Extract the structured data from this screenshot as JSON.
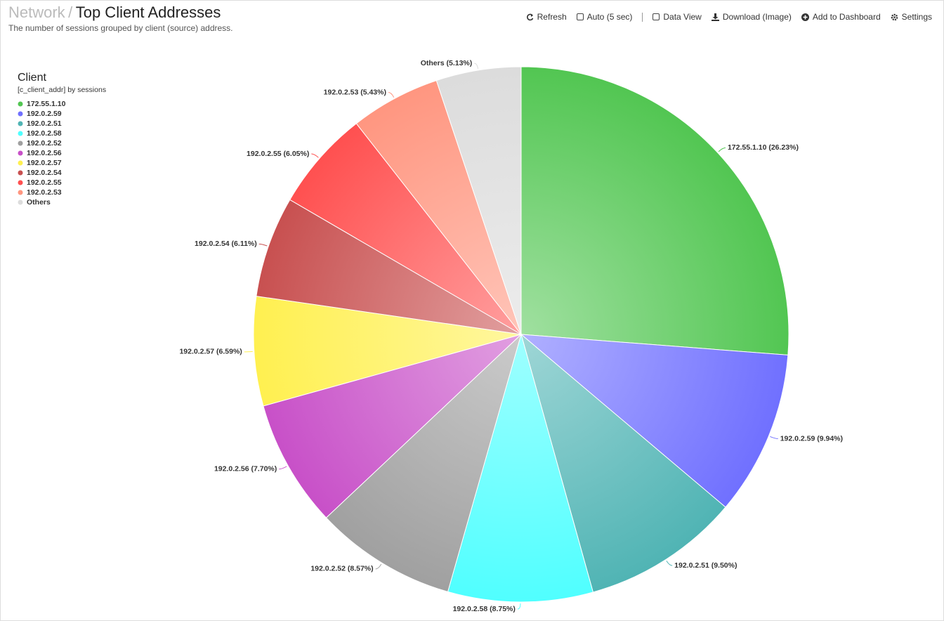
{
  "header": {
    "breadcrumb": "Network",
    "separator": "/",
    "title": "Top Client Addresses",
    "subtitle": "The number of sessions grouped by client (source) address."
  },
  "toolbar": [
    "Refresh",
    "Auto (5 sec)",
    "Data View",
    "Download (Image)",
    "Add to Dashboard",
    "Settings"
  ],
  "chart_data": {
    "type": "pie",
    "legend_title": "Client",
    "legend_subtitle": "[c_client_addr] by sessions",
    "legend": "top-left",
    "categories": [
      "172.55.1.10",
      "192.0.2.59",
      "192.0.2.51",
      "192.0.2.58",
      "192.0.2.52",
      "192.0.2.56",
      "192.0.2.57",
      "192.0.2.54",
      "192.0.2.55",
      "192.0.2.53",
      "Others"
    ],
    "values": [
      26.23,
      9.94,
      9.5,
      8.75,
      8.57,
      7.7,
      6.59,
      6.11,
      6.05,
      5.43,
      5.13
    ],
    "value_labels": [
      "172.55.1.10 (26.23%)",
      "192.0.2.59 (9.94%)",
      "192.0.2.51 (9.50%)",
      "192.0.2.58 (8.75%)",
      "192.0.2.52 (8.57%)",
      "192.0.2.56 (7.70%)",
      "192.0.2.57 (6.59%)",
      "192.0.2.54 (6.11%)",
      "192.0.2.55 (6.05%)",
      "192.0.2.53 (5.43%)",
      "Others (5.13%)"
    ],
    "colors": [
      "#52c652",
      "#7070ff",
      "#50b4b4",
      "#50ffff",
      "#a0a0a0",
      "#c850c8",
      "#fff050",
      "#c85050",
      "#ff5050",
      "#ff9680",
      "#dcdcdc"
    ]
  }
}
